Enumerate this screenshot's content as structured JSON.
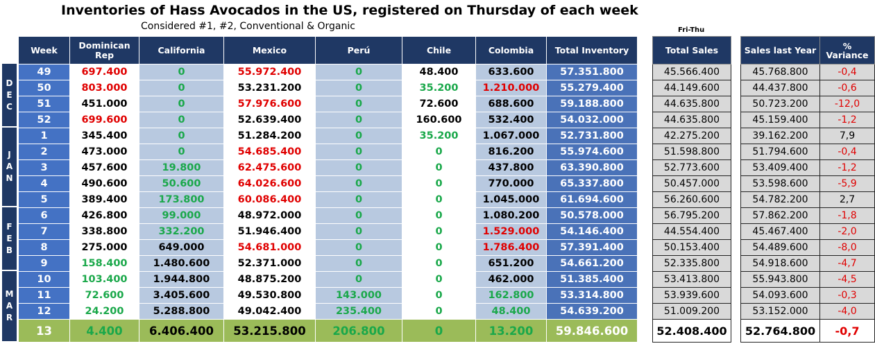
{
  "title": "Inventories of Hass Avocados in the US, registered on Thursday of each week",
  "subtitle": "Considered #1, #2, Conventional & Organic",
  "fri_thu": "Fri-Thu",
  "headers": {
    "week": "Week",
    "dominican": "Dominican Rep",
    "california": "California",
    "mexico": "Mexico",
    "peru": "Perú",
    "chile": "Chile",
    "colombia": "Colombia",
    "total": "Total Inventory",
    "sales": "Total Sales",
    "sales_ly": "Sales last Year",
    "variance_pct": "%",
    "variance": "Variance"
  },
  "months": [
    {
      "letters": [
        "D",
        "E",
        "C"
      ],
      "rows": 4
    },
    {
      "letters": [
        "J",
        "A",
        "N"
      ],
      "rows": 5
    },
    {
      "letters": [
        "F",
        "E",
        "B"
      ],
      "rows": 4
    },
    {
      "letters": [
        "M",
        "A",
        "R"
      ],
      "rows": 4
    }
  ],
  "colors": {
    "red": "#e00000",
    "green": "#1aa84a"
  },
  "rows": [
    {
      "week": "49",
      "dom": [
        "697.400",
        "red"
      ],
      "cal": [
        "0",
        "green"
      ],
      "mex": [
        "55.972.400",
        "red"
      ],
      "peru": [
        "0",
        "green"
      ],
      "chile": [
        "48.400",
        "black"
      ],
      "col": [
        "633.600",
        "black"
      ],
      "total": "57.351.800",
      "sales": "45.566.400",
      "ly": "45.768.800",
      "var": [
        "-0,4",
        "red"
      ]
    },
    {
      "week": "50",
      "dom": [
        "803.000",
        "red"
      ],
      "cal": [
        "0",
        "green"
      ],
      "mex": [
        "53.231.200",
        "black"
      ],
      "peru": [
        "0",
        "green"
      ],
      "chile": [
        "35.200",
        "green"
      ],
      "col": [
        "1.210.000",
        "red"
      ],
      "total": "55.279.400",
      "sales": "44.149.600",
      "ly": "44.437.800",
      "var": [
        "-0,6",
        "red"
      ]
    },
    {
      "week": "51",
      "dom": [
        "451.000",
        "black"
      ],
      "cal": [
        "0",
        "green"
      ],
      "mex": [
        "57.976.600",
        "red"
      ],
      "peru": [
        "0",
        "green"
      ],
      "chile": [
        "72.600",
        "black"
      ],
      "col": [
        "688.600",
        "black"
      ],
      "total": "59.188.800",
      "sales": "44.635.800",
      "ly": "50.723.200",
      "var": [
        "-12,0",
        "red"
      ]
    },
    {
      "week": "52",
      "dom": [
        "699.600",
        "red"
      ],
      "cal": [
        "0",
        "green"
      ],
      "mex": [
        "52.639.400",
        "black"
      ],
      "peru": [
        "0",
        "green"
      ],
      "chile": [
        "160.600",
        "black"
      ],
      "col": [
        "532.400",
        "black"
      ],
      "total": "54.032.000",
      "sales": "44.635.800",
      "ly": "45.159.400",
      "var": [
        "-1,2",
        "red"
      ]
    },
    {
      "week": "1",
      "dom": [
        "345.400",
        "black"
      ],
      "cal": [
        "0",
        "green"
      ],
      "mex": [
        "51.284.200",
        "black"
      ],
      "peru": [
        "0",
        "green"
      ],
      "chile": [
        "35.200",
        "green"
      ],
      "col": [
        "1.067.000",
        "black"
      ],
      "total": "52.731.800",
      "sales": "42.275.200",
      "ly": "39.162.200",
      "var": [
        "7,9",
        "black"
      ]
    },
    {
      "week": "2",
      "dom": [
        "473.000",
        "black"
      ],
      "cal": [
        "0",
        "green"
      ],
      "mex": [
        "54.685.400",
        "red"
      ],
      "peru": [
        "0",
        "green"
      ],
      "chile": [
        "0",
        "green"
      ],
      "col": [
        "816.200",
        "black"
      ],
      "total": "55.974.600",
      "sales": "51.598.800",
      "ly": "51.794.600",
      "var": [
        "-0,4",
        "red"
      ]
    },
    {
      "week": "3",
      "dom": [
        "457.600",
        "black"
      ],
      "cal": [
        "19.800",
        "green"
      ],
      "mex": [
        "62.475.600",
        "red"
      ],
      "peru": [
        "0",
        "green"
      ],
      "chile": [
        "0",
        "green"
      ],
      "col": [
        "437.800",
        "black"
      ],
      "total": "63.390.800",
      "sales": "52.773.600",
      "ly": "53.409.400",
      "var": [
        "-1,2",
        "red"
      ]
    },
    {
      "week": "4",
      "dom": [
        "490.600",
        "black"
      ],
      "cal": [
        "50.600",
        "green"
      ],
      "mex": [
        "64.026.600",
        "red"
      ],
      "peru": [
        "0",
        "green"
      ],
      "chile": [
        "0",
        "green"
      ],
      "col": [
        "770.000",
        "black"
      ],
      "total": "65.337.800",
      "sales": "50.457.000",
      "ly": "53.598.600",
      "var": [
        "-5,9",
        "red"
      ]
    },
    {
      "week": "5",
      "dom": [
        "389.400",
        "black"
      ],
      "cal": [
        "173.800",
        "green"
      ],
      "mex": [
        "60.086.400",
        "red"
      ],
      "peru": [
        "0",
        "green"
      ],
      "chile": [
        "0",
        "green"
      ],
      "col": [
        "1.045.000",
        "black"
      ],
      "total": "61.694.600",
      "sales": "56.260.600",
      "ly": "54.782.200",
      "var": [
        "2,7",
        "black"
      ]
    },
    {
      "week": "6",
      "dom": [
        "426.800",
        "black"
      ],
      "cal": [
        "99.000",
        "green"
      ],
      "mex": [
        "48.972.000",
        "black"
      ],
      "peru": [
        "0",
        "green"
      ],
      "chile": [
        "0",
        "green"
      ],
      "col": [
        "1.080.200",
        "black"
      ],
      "total": "50.578.000",
      "sales": "56.795.200",
      "ly": "57.862.200",
      "var": [
        "-1,8",
        "red"
      ]
    },
    {
      "week": "7",
      "dom": [
        "338.800",
        "black"
      ],
      "cal": [
        "332.200",
        "green"
      ],
      "mex": [
        "51.946.400",
        "black"
      ],
      "peru": [
        "0",
        "green"
      ],
      "chile": [
        "0",
        "green"
      ],
      "col": [
        "1.529.000",
        "red"
      ],
      "total": "54.146.400",
      "sales": "44.554.400",
      "ly": "45.467.400",
      "var": [
        "-2,0",
        "red"
      ]
    },
    {
      "week": "8",
      "dom": [
        "275.000",
        "black"
      ],
      "cal": [
        "649.000",
        "black"
      ],
      "mex": [
        "54.681.000",
        "red"
      ],
      "peru": [
        "0",
        "green"
      ],
      "chile": [
        "0",
        "green"
      ],
      "col": [
        "1.786.400",
        "red"
      ],
      "total": "57.391.400",
      "sales": "50.153.400",
      "ly": "54.489.600",
      "var": [
        "-8,0",
        "red"
      ]
    },
    {
      "week": "9",
      "dom": [
        "158.400",
        "green"
      ],
      "cal": [
        "1.480.600",
        "black"
      ],
      "mex": [
        "52.371.000",
        "black"
      ],
      "peru": [
        "0",
        "green"
      ],
      "chile": [
        "0",
        "green"
      ],
      "col": [
        "651.200",
        "black"
      ],
      "total": "54.661.200",
      "sales": "52.335.800",
      "ly": "54.918.600",
      "var": [
        "-4,7",
        "red"
      ]
    },
    {
      "week": "10",
      "dom": [
        "103.400",
        "green"
      ],
      "cal": [
        "1.944.800",
        "black"
      ],
      "mex": [
        "48.875.200",
        "black"
      ],
      "peru": [
        "0",
        "green"
      ],
      "chile": [
        "0",
        "green"
      ],
      "col": [
        "462.000",
        "black"
      ],
      "total": "51.385.400",
      "sales": "53.413.800",
      "ly": "55.943.800",
      "var": [
        "-4,5",
        "red"
      ]
    },
    {
      "week": "11",
      "dom": [
        "72.600",
        "green"
      ],
      "cal": [
        "3.405.600",
        "black"
      ],
      "mex": [
        "49.530.800",
        "black"
      ],
      "peru": [
        "143.000",
        "green"
      ],
      "chile": [
        "0",
        "green"
      ],
      "col": [
        "162.800",
        "green"
      ],
      "total": "53.314.800",
      "sales": "53.939.600",
      "ly": "54.093.600",
      "var": [
        "-0,3",
        "red"
      ]
    },
    {
      "week": "12",
      "dom": [
        "24.200",
        "green"
      ],
      "cal": [
        "5.288.800",
        "black"
      ],
      "mex": [
        "49.042.400",
        "black"
      ],
      "peru": [
        "235.400",
        "green"
      ],
      "chile": [
        "0",
        "green"
      ],
      "col": [
        "48.400",
        "green"
      ],
      "total": "54.639.200",
      "sales": "51.009.200",
      "ly": "53.152.000",
      "var": [
        "-4,0",
        "red"
      ]
    },
    {
      "week": "13",
      "dom": [
        "4.400",
        "green"
      ],
      "cal": [
        "6.406.400",
        "black"
      ],
      "mex": [
        "53.215.800",
        "black"
      ],
      "peru": [
        "206.800",
        "green"
      ],
      "chile": [
        "0",
        "green"
      ],
      "col": [
        "13.200",
        "green"
      ],
      "total": "59.846.600",
      "sales": "52.408.400",
      "ly": "52.764.800",
      "var": [
        "-0,7",
        "red"
      ]
    }
  ]
}
